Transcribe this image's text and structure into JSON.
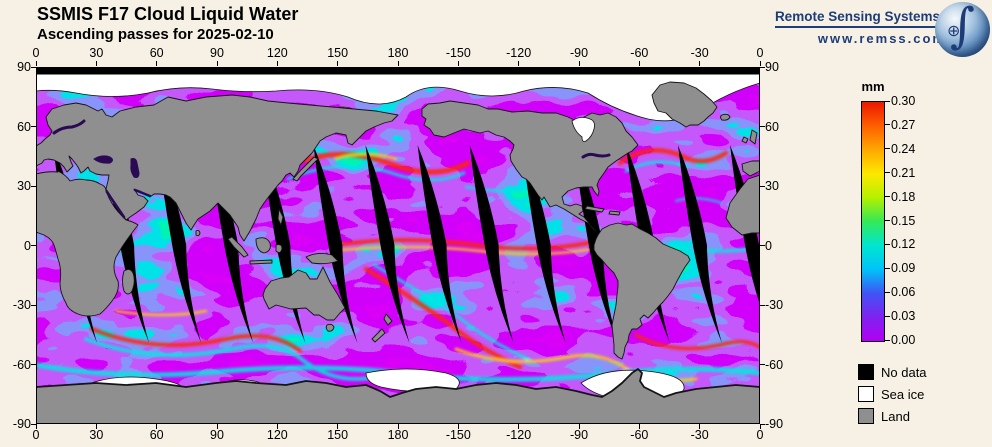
{
  "page": {
    "background": "#f6f1e4"
  },
  "header": {
    "title": "SSMIS F17 Cloud Liquid Water",
    "subtitle": "Ascending passes for 2025-02-10"
  },
  "branding": {
    "name": "Remote Sensing Systems",
    "url": "www.remss.com",
    "color": "#1e3c78",
    "logo": "earth-globe-with-integral-icon"
  },
  "chart_data": {
    "type": "heatmap",
    "title": "SSMIS F17 Cloud Liquid Water",
    "subtitle": "Ascending passes for 2025-02-10",
    "satellite": "SSMIS F17",
    "variable": "Cloud Liquid Water",
    "pass_type": "Ascending",
    "date": "2025-02-10",
    "projection": "equirectangular world map, longitude 0 to 360 east, latitude 90 to -90",
    "x_axis": {
      "ticks": [
        "0",
        "30",
        "60",
        "90",
        "120",
        "150",
        "180",
        "-150",
        "-120",
        "-90",
        "-60",
        "-30",
        "0"
      ],
      "range_deg": [
        0,
        360
      ],
      "shown_top_and_bottom": true
    },
    "y_axis": {
      "ticks": [
        "90",
        "60",
        "30",
        "0",
        "-30",
        "-60",
        "-90"
      ],
      "range_deg": [
        90,
        -90
      ],
      "shown_left_and_right": true
    },
    "colorbar": {
      "unit": "mm",
      "min": 0.0,
      "max": 0.3,
      "ticks": [
        "0.30",
        "0.27",
        "0.24",
        "0.21",
        "0.18",
        "0.15",
        "0.12",
        "0.09",
        "0.06",
        "0.03",
        "0.00"
      ],
      "stops": [
        {
          "value": 0.0,
          "color": "#b200f5"
        },
        {
          "value": 0.03,
          "color": "#8022f0"
        },
        {
          "value": 0.06,
          "color": "#3f55f5"
        },
        {
          "value": 0.09,
          "color": "#00c3f9"
        },
        {
          "value": 0.12,
          "color": "#00e6cf"
        },
        {
          "value": 0.15,
          "color": "#35e857"
        },
        {
          "value": 0.18,
          "color": "#b5f000"
        },
        {
          "value": 0.21,
          "color": "#fde800"
        },
        {
          "value": 0.24,
          "color": "#ffa800"
        },
        {
          "value": 0.27,
          "color": "#ff5f00"
        },
        {
          "value": 0.3,
          "color": "#ec1800"
        }
      ]
    },
    "legend": [
      {
        "label": "No data",
        "color": "#000000"
      },
      {
        "label": "Sea ice",
        "color": "#ffffff"
      },
      {
        "label": "Land",
        "color": "#8f8f8f"
      }
    ],
    "map": {
      "ocean_color": "#a400f0",
      "land_color": "#8f8f8f",
      "no_data_color": "#000000",
      "sea_ice_color": "#ffffff",
      "swath_gaps": 14,
      "polar_no_data_band_lat": [
        88,
        90
      ]
    }
  }
}
